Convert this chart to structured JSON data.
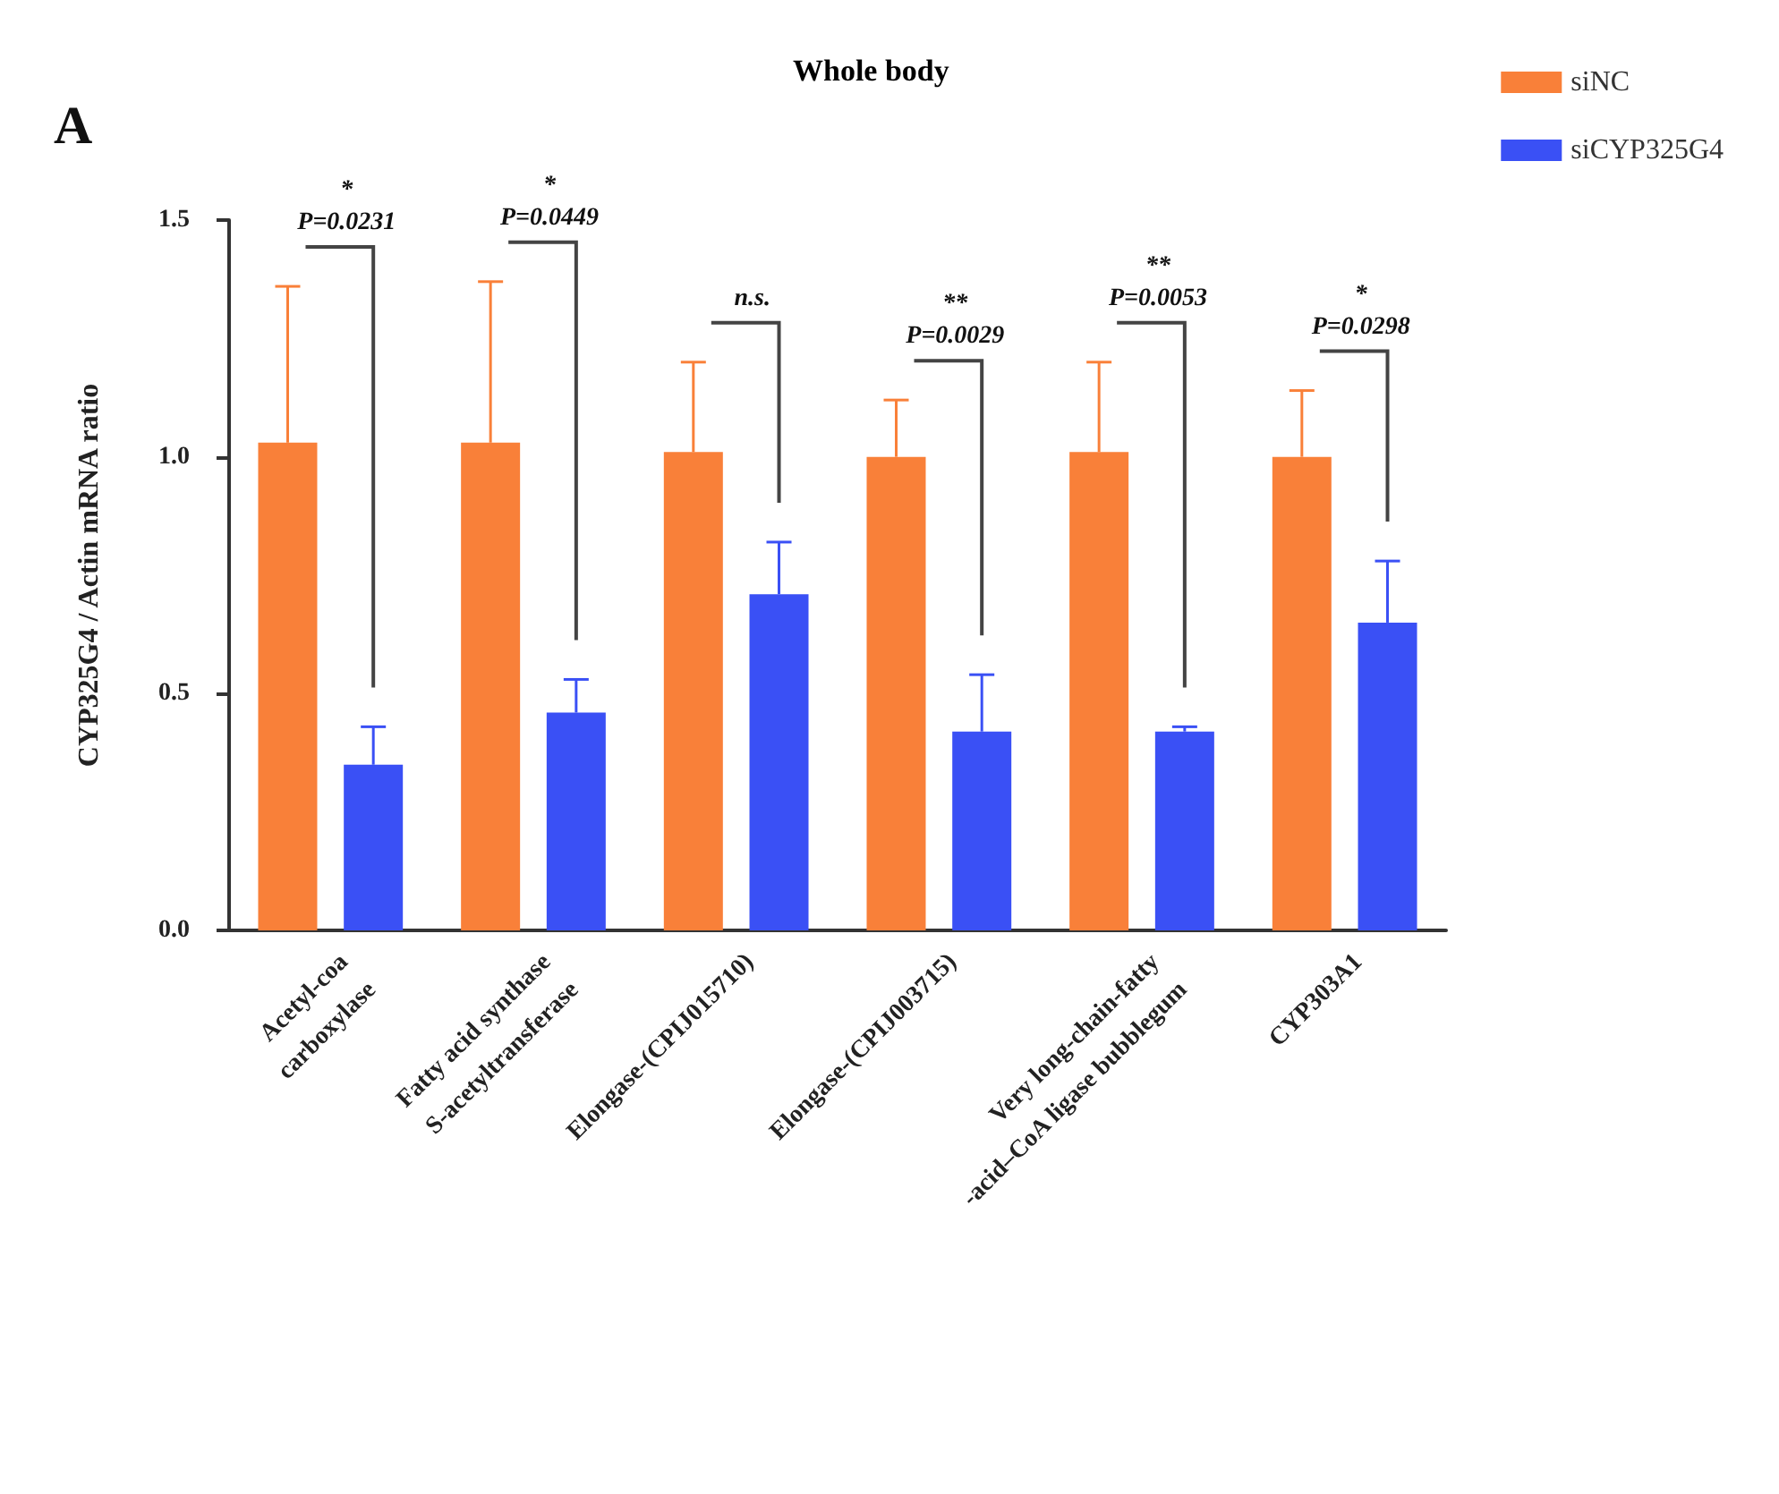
{
  "chart_data": {
    "type": "bar",
    "title": "Whole body",
    "ylabel": "CYP325G4 / Actin mRNA ratio",
    "categories": [
      "Acetyl-coa\ncarboxylase",
      "Fatty acid synthase\nS-acetyltransferase",
      "Elongase-(CPIJ015710)",
      "Elongase-(CPIJ003715)",
      "Very long-chain-fatty\n-acid–CoA ligase bubblegum",
      "CYP303A1"
    ],
    "series": [
      {
        "name": "siNC",
        "color": "#f98039",
        "values": [
          1.03,
          1.03,
          1.01,
          1.0,
          1.01,
          1.0
        ],
        "errors": [
          [
            1.03,
            1.36
          ],
          [
            1.03,
            1.37
          ],
          [
            1.01,
            1.2
          ],
          [
            1.0,
            1.12
          ],
          [
            1.01,
            1.2
          ],
          [
            1.0,
            1.14
          ]
        ]
      },
      {
        "name": "siCYP325G4",
        "color": "#3a50f5",
        "values": [
          0.35,
          0.46,
          0.71,
          0.42,
          0.42,
          0.65
        ],
        "errors": [
          [
            0.35,
            0.43
          ],
          [
            0.46,
            0.53
          ],
          [
            0.71,
            0.82
          ],
          [
            0.42,
            0.54
          ],
          [
            0.42,
            0.43
          ],
          [
            0.65,
            0.78
          ]
        ]
      }
    ],
    "ylim": [
      0,
      1.5
    ],
    "yticks": [
      {
        "value": 0,
        "label": "0.0"
      },
      0.5,
      {
        "value": 1,
        "label": "1.0"
      },
      1.5
    ],
    "grid": false,
    "legend": "top right",
    "annotations": [
      "A",
      "*\nP=0.0231",
      "*\nP=0.0449",
      "n.s.",
      "**\nP=0.0029",
      "**\nP=0.0053",
      "*\nP=0.0298"
    ]
  }
}
